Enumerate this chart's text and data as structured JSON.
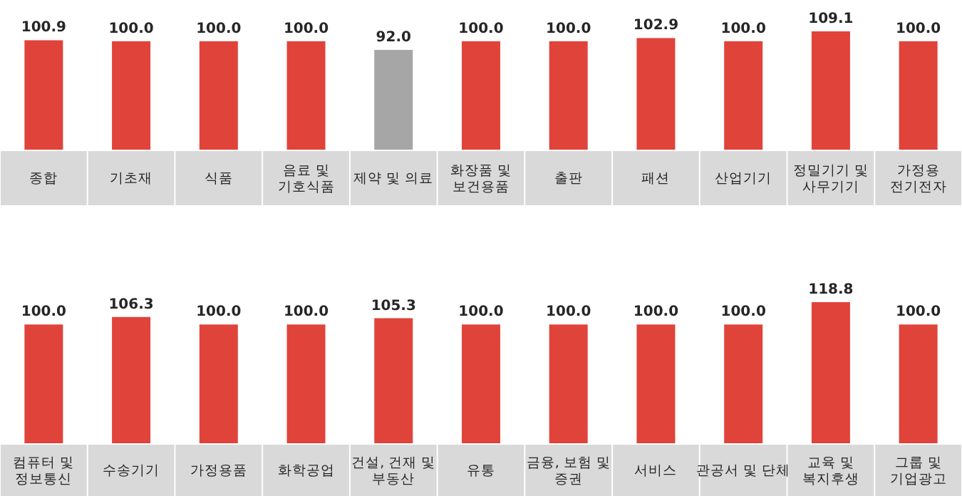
{
  "chart_data": [
    {
      "type": "bar",
      "categories": [
        "종합",
        "기초재",
        "식품",
        "음료 및\n기호식품",
        "제약 및 의료",
        "화장품 및\n보건용품",
        "출판",
        "패션",
        "산업기기",
        "정밀기기 및\n사무기기",
        "가정용\n전기전자"
      ],
      "values": [
        100.9,
        100.0,
        100.0,
        100.0,
        92.0,
        100.0,
        100.0,
        102.9,
        100.0,
        109.1,
        100.0
      ],
      "colors": [
        "#e0433a",
        "#e0433a",
        "#e0433a",
        "#e0433a",
        "#a6a6a6",
        "#e0433a",
        "#e0433a",
        "#e0433a",
        "#e0433a",
        "#e0433a",
        "#e0433a"
      ],
      "value_labels": [
        "100.9",
        "100.0",
        "100.0",
        "100.0",
        "92.0",
        "100.0",
        "100.0",
        "102.9",
        "100.0",
        "109.1",
        "100.0"
      ]
    },
    {
      "type": "bar",
      "categories": [
        "컴퓨터 및\n정보통신",
        "수송기기",
        "가정용품",
        "화학공업",
        "건설, 건재 및\n부동산",
        "유통",
        "금융, 보험 및\n증권",
        "서비스",
        "관공서 및 단체",
        "교육 및\n복지후생",
        "그룹 및\n기업광고"
      ],
      "values": [
        100.0,
        106.3,
        100.0,
        100.0,
        105.3,
        100.0,
        100.0,
        100.0,
        100.0,
        118.8,
        100.0
      ],
      "colors": [
        "#e0433a",
        "#e0433a",
        "#e0433a",
        "#e0433a",
        "#e0433a",
        "#e0433a",
        "#e0433a",
        "#e0433a",
        "#e0433a",
        "#e0433a",
        "#e0433a"
      ],
      "value_labels": [
        "100.0",
        "106.3",
        "100.0",
        "100.0",
        "105.3",
        "100.0",
        "100.0",
        "100.0",
        "100.0",
        "118.8",
        "100.0"
      ]
    }
  ]
}
